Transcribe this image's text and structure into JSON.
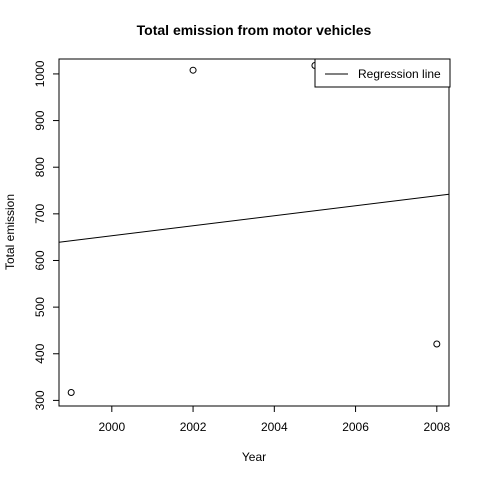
{
  "chart_data": {
    "type": "scatter",
    "title": "Total emission from motor vehicles",
    "xlabel": "Year",
    "ylabel": "Total emission",
    "xlim": [
      1998.7,
      2008.3
    ],
    "ylim": [
      288,
      1032
    ],
    "x_ticks": [
      2000,
      2002,
      2004,
      2006,
      2008
    ],
    "y_ticks": [
      300,
      400,
      500,
      600,
      700,
      800,
      900,
      1000
    ],
    "points": [
      {
        "x": 1999,
        "y": 317
      },
      {
        "x": 2002,
        "y": 1008
      },
      {
        "x": 2005,
        "y": 1018
      },
      {
        "x": 2008,
        "y": 421
      }
    ],
    "regression": {
      "name": "Regression line",
      "x": [
        1998.7,
        2008.3
      ],
      "y": [
        639,
        742
      ]
    },
    "legend": {
      "position": "top-right",
      "entries": [
        "Regression line"
      ]
    },
    "grid": false
  }
}
